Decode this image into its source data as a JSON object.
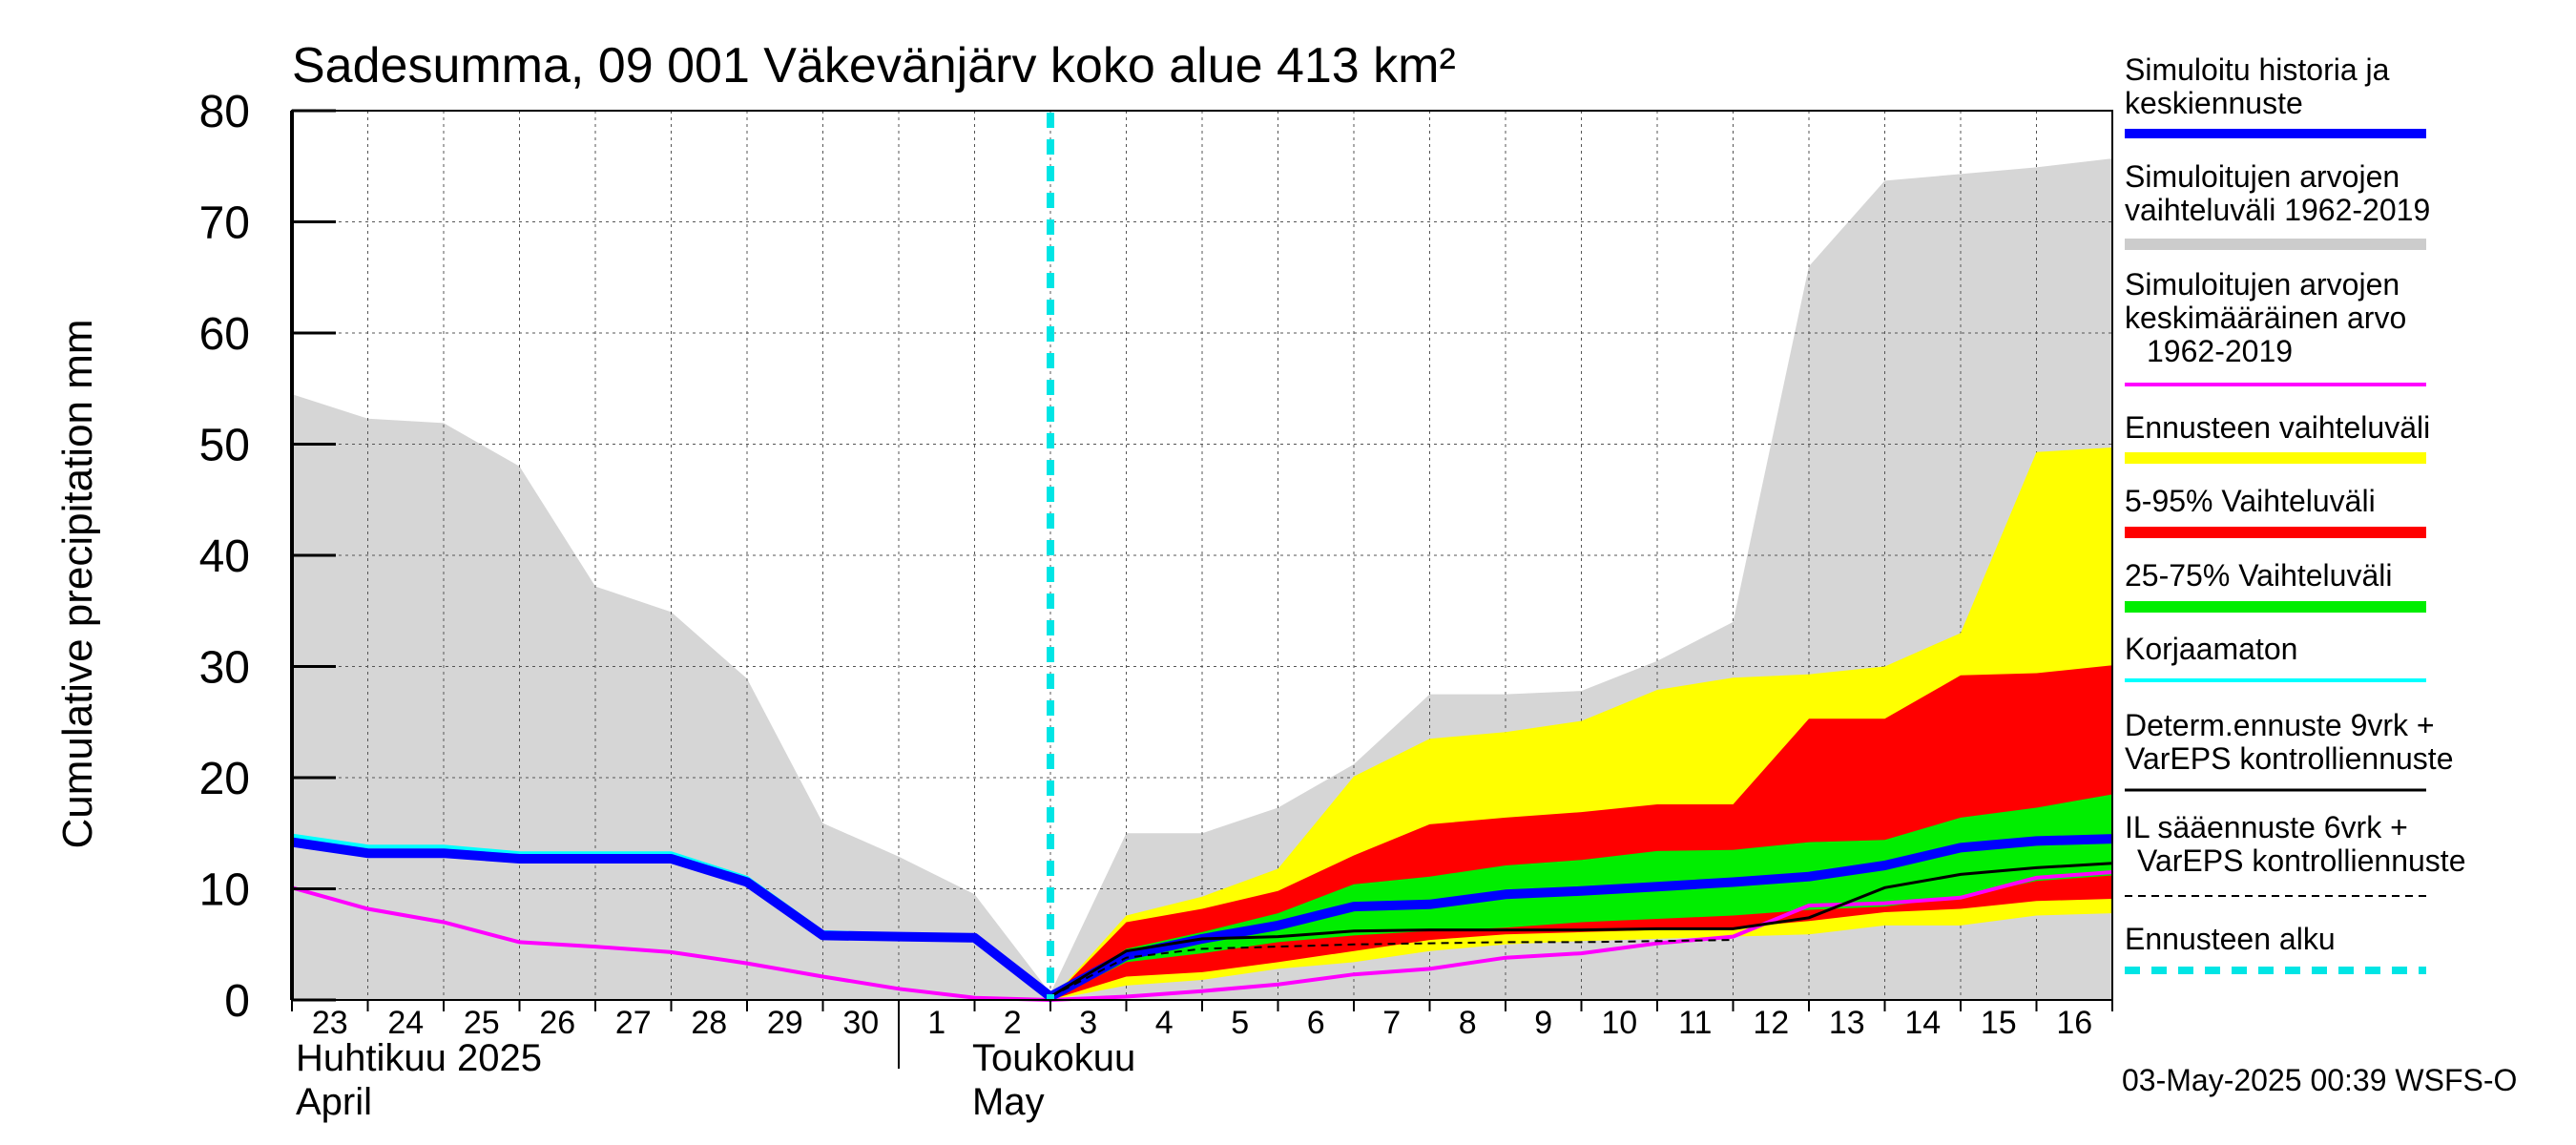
{
  "chart_data": {
    "type": "area",
    "title": "Sadesumma, 09 001 Väkevänjärv koko alue 413 km²",
    "ylabel": "Cumulative precipitation   mm",
    "ylim": [
      0,
      80
    ],
    "y_ticks": [
      "0",
      "10",
      "20",
      "30",
      "40",
      "50",
      "60",
      "70",
      "80"
    ],
    "grid": true,
    "legend_position": "right",
    "x_day_labels": [
      "23",
      "24",
      "25",
      "26",
      "27",
      "28",
      "29",
      "30",
      "1",
      "2",
      "3",
      "4",
      "5",
      "6",
      "7",
      "8",
      "9",
      "10",
      "11",
      "12",
      "13",
      "14",
      "15",
      "16"
    ],
    "month_labels": {
      "april_fi": "Huhtikuu  2025",
      "april_en": "April",
      "may_fi": "Toukokuu",
      "may_en": "May"
    },
    "forecast_start_day_index": 10,
    "series": {
      "historical_range": {
        "x": [
          0,
          1,
          2,
          3,
          4,
          5,
          6,
          7,
          8,
          9,
          10,
          11,
          12,
          13,
          14,
          15,
          16,
          17,
          18,
          19,
          20,
          21,
          22,
          23,
          24
        ],
        "low": [
          0,
          0,
          0,
          0,
          0,
          0,
          0,
          0,
          0,
          0,
          0,
          0,
          0,
          0,
          0,
          0,
          0,
          0,
          0,
          0,
          0,
          0,
          0,
          0,
          0
        ],
        "high": [
          54.5,
          52.3,
          51.9,
          48,
          37.2,
          34.9,
          28.9,
          15.9,
          12.9,
          9.5,
          0.6,
          15,
          15,
          17.3,
          21.2,
          27.5,
          27.5,
          27.8,
          30.5,
          34,
          66,
          73.7,
          74.3,
          74.9,
          75.7
        ]
      },
      "forecast_range": {
        "x": [
          10,
          11,
          12,
          13,
          14,
          15,
          16,
          17,
          18,
          19,
          20,
          21,
          22,
          23,
          24
        ],
        "low": [
          0,
          1.3,
          1.8,
          2.8,
          3.4,
          4.4,
          5,
          5.3,
          5.5,
          5.7,
          5.9,
          6.7,
          6.7,
          7.6,
          7.8
        ],
        "high": [
          0,
          7.6,
          9.3,
          11.8,
          20.1,
          23.5,
          24.1,
          25.1,
          27.9,
          29,
          29.3,
          30,
          33,
          49.3,
          49.7
        ]
      },
      "p5_95": {
        "x": [
          10,
          11,
          12,
          13,
          14,
          15,
          16,
          17,
          18,
          19,
          20,
          21,
          22,
          23,
          24
        ],
        "low": [
          0,
          2.1,
          2.5,
          3.4,
          4.4,
          5.4,
          5.9,
          6.1,
          6.3,
          6.5,
          7.1,
          7.9,
          8.2,
          8.9,
          9.1
        ],
        "high": [
          0,
          7,
          8.2,
          9.8,
          13,
          15.8,
          16.4,
          16.9,
          17.6,
          17.6,
          25.3,
          25.3,
          29.2,
          29.4,
          30.1
        ]
      },
      "p25_75": {
        "x": [
          10,
          11,
          12,
          13,
          14,
          15,
          16,
          17,
          18,
          19,
          20,
          21,
          22,
          23,
          24
        ],
        "low": [
          0,
          3.4,
          4.2,
          5.2,
          5.8,
          6.2,
          6.5,
          7,
          7.3,
          7.6,
          8.1,
          8.4,
          9.3,
          10.7,
          11.2
        ],
        "high": [
          0,
          4.6,
          6.1,
          7.8,
          10.4,
          11.1,
          12.1,
          12.6,
          13.4,
          13.5,
          14.2,
          14.4,
          16.4,
          17.3,
          18.5
        ]
      },
      "median_forecast": {
        "x": [
          0,
          1,
          2,
          3,
          4,
          5,
          6,
          7,
          8,
          9,
          10,
          11,
          12,
          13,
          14,
          15,
          16,
          17,
          18,
          19,
          20,
          21,
          22,
          23,
          24
        ],
        "y": [
          14.2,
          13.2,
          13.2,
          12.7,
          12.7,
          12.7,
          10.6,
          5.8,
          5.7,
          5.6,
          0.3,
          4,
          5.5,
          6.7,
          8.4,
          8.6,
          9.5,
          9.8,
          10.2,
          10.6,
          11.1,
          12.1,
          13.7,
          14.3,
          14.5
        ]
      },
      "mean_1962_2019": {
        "x": [
          0,
          1,
          2,
          3,
          4,
          5,
          6,
          7,
          8,
          9,
          10,
          11,
          12,
          13,
          14,
          15,
          16,
          17,
          18,
          19,
          20,
          21,
          22,
          23,
          24
        ],
        "y": [
          10.1,
          8.2,
          7,
          5.2,
          4.8,
          4.3,
          3.3,
          2.1,
          1,
          0.2,
          0,
          0.3,
          0.8,
          1.4,
          2.3,
          2.8,
          3.8,
          4.2,
          5.1,
          5.7,
          8.5,
          8.7,
          9.2,
          11,
          11.5
        ]
      },
      "uncorrected": {
        "x": [
          0,
          1,
          2,
          3,
          4,
          5,
          6,
          7,
          8,
          9,
          10
        ],
        "y": [
          14.8,
          13.8,
          13.8,
          13.2,
          13.2,
          13.2,
          11,
          6.1,
          5.9,
          5.8,
          0.5
        ]
      },
      "deterministic_9d": {
        "x": [
          10,
          11,
          12,
          13,
          14,
          15,
          16,
          17,
          18,
          19,
          20,
          21,
          22,
          23,
          24
        ],
        "y": [
          0.3,
          4.4,
          5.5,
          5.7,
          6.2,
          6.3,
          6.3,
          6.3,
          6.4,
          6.4,
          7.4,
          10.1,
          11.3,
          11.9,
          12.3
        ]
      },
      "il_6d": {
        "x": [
          10,
          11,
          12,
          13,
          14,
          15,
          16,
          17,
          18,
          19
        ],
        "y": [
          0.3,
          3.8,
          4.6,
          4.8,
          5,
          5.1,
          5.2,
          5.2,
          5.3,
          5.4
        ]
      }
    },
    "legend": [
      {
        "key": "median",
        "label": "Simuloitu historia ja keskiennuste",
        "color": "#0000ff"
      },
      {
        "key": "hist_range",
        "label": "Simuloitujen arvojen vaihteluväli 1962-2019",
        "color": "#cccccc"
      },
      {
        "key": "mean",
        "label": "Simuloitujen arvojen keskimääräinen arvo   1962-2019",
        "color": "#ff00ff"
      },
      {
        "key": "fc_range",
        "label": "Ennusteen vaihteluväli",
        "color": "#ffff00"
      },
      {
        "key": "p5_95",
        "label": "5-95% Vaihteluväli",
        "color": "#ff0000"
      },
      {
        "key": "p25_75",
        "label": "25-75% Vaihteluväli",
        "color": "#00ff00"
      },
      {
        "key": "uncorrected",
        "label": "Korjaamaton",
        "color": "#00ffff"
      },
      {
        "key": "determ",
        "label": "Determ.ennuste 9vrk + VarEPS kontrolliennuste",
        "color": "#000000"
      },
      {
        "key": "il",
        "label": "IL sääennuste 6vrk  +   VarEPS kontrolliennuste",
        "color": "#000000"
      },
      {
        "key": "start",
        "label": "Ennusteen alku",
        "color": "#00e5e5"
      }
    ],
    "footer": "03-May-2025 00:39 WSFS-O"
  }
}
